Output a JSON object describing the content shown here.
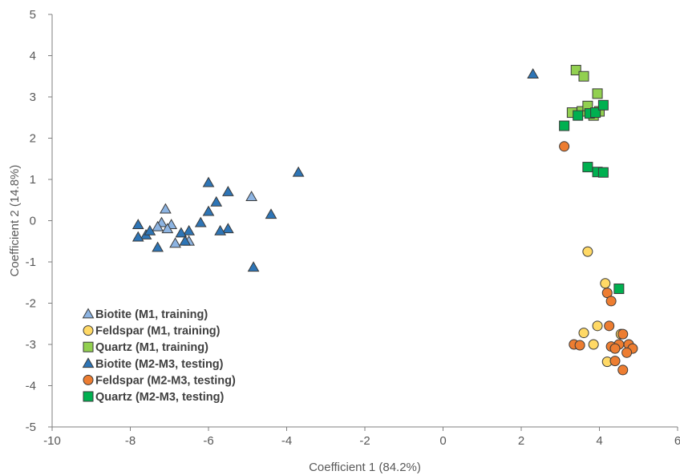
{
  "chart_data": {
    "type": "scatter",
    "title": "",
    "xlabel": "Coefficient 1 (84.2%)",
    "ylabel": "Coefficient 2 (14.8%)",
    "xlim": [
      -10,
      6
    ],
    "ylim": [
      -5,
      5
    ],
    "x_ticks": [
      -10,
      -8,
      -6,
      -4,
      -2,
      0,
      2,
      4,
      6
    ],
    "y_ticks": [
      -5,
      -4,
      -3,
      -2,
      -1,
      0,
      1,
      2,
      3,
      4,
      5
    ],
    "x_tick_labels": [
      "-10",
      "-8",
      "-6",
      "-4",
      "-2",
      "0",
      "2",
      "4",
      "6"
    ],
    "y_tick_labels": [
      "-5",
      "-4",
      "-3",
      "-2",
      "-1",
      "0",
      "1",
      "2",
      "3",
      "4",
      "5"
    ],
    "grid": false,
    "legend_position": "bottom-left",
    "series": [
      {
        "name": "Biotite (M1, training)",
        "marker": "triangle",
        "color": "#8db4e2",
        "points": [
          [
            -7.1,
            0.28
          ],
          [
            -7.2,
            -0.05
          ],
          [
            -6.95,
            -0.1
          ],
          [
            -7.05,
            -0.2
          ],
          [
            -6.85,
            -0.55
          ],
          [
            -6.5,
            -0.5
          ],
          [
            -4.9,
            0.58
          ],
          [
            -7.3,
            -0.15
          ]
        ]
      },
      {
        "name": "Feldspar (M1, training)",
        "marker": "circle",
        "color": "#ffd966",
        "points": [
          [
            3.7,
            -0.75
          ],
          [
            4.15,
            -1.52
          ],
          [
            3.95,
            -2.55
          ],
          [
            3.6,
            -2.72
          ],
          [
            3.85,
            -3.0
          ],
          [
            4.2,
            -3.42
          ],
          [
            4.55,
            -2.75
          ]
        ]
      },
      {
        "name": "Quartz (M1, training)",
        "marker": "square",
        "color": "#92d050",
        "points": [
          [
            3.4,
            3.65
          ],
          [
            3.6,
            3.5
          ],
          [
            3.95,
            3.08
          ],
          [
            3.3,
            2.62
          ],
          [
            3.55,
            2.65
          ],
          [
            3.7,
            2.78
          ],
          [
            3.85,
            2.55
          ],
          [
            4.0,
            2.65
          ]
        ]
      },
      {
        "name": "Biotite (M2-M3, testing)",
        "marker": "triangle",
        "color": "#2e75b6",
        "points": [
          [
            2.3,
            3.55
          ],
          [
            -3.7,
            1.17
          ],
          [
            -6.0,
            0.92
          ],
          [
            -5.5,
            0.7
          ],
          [
            -5.8,
            0.45
          ],
          [
            -6.0,
            0.22
          ],
          [
            -4.4,
            0.15
          ],
          [
            -5.5,
            -0.2
          ],
          [
            -5.7,
            -0.25
          ],
          [
            -6.2,
            -0.05
          ],
          [
            -6.5,
            -0.25
          ],
          [
            -6.7,
            -0.3
          ],
          [
            -6.6,
            -0.5
          ],
          [
            -7.3,
            -0.65
          ],
          [
            -7.6,
            -0.35
          ],
          [
            -7.8,
            -0.1
          ],
          [
            -7.5,
            -0.25
          ],
          [
            -7.8,
            -0.4
          ],
          [
            -4.85,
            -1.13
          ]
        ]
      },
      {
        "name": "Feldspar (M2-M3, testing)",
        "marker": "circle",
        "color": "#ed7d31",
        "points": [
          [
            3.1,
            1.8
          ],
          [
            4.2,
            -1.75
          ],
          [
            4.3,
            -1.95
          ],
          [
            4.25,
            -2.55
          ],
          [
            4.6,
            -2.75
          ],
          [
            4.3,
            -3.05
          ],
          [
            4.5,
            -3.0
          ],
          [
            4.4,
            -3.1
          ],
          [
            4.75,
            -3.0
          ],
          [
            4.85,
            -3.1
          ],
          [
            4.7,
            -3.2
          ],
          [
            3.35,
            -3.0
          ],
          [
            3.5,
            -3.02
          ],
          [
            4.4,
            -3.4
          ],
          [
            4.6,
            -3.62
          ]
        ]
      },
      {
        "name": "Quartz (M2-M3, testing)",
        "marker": "square",
        "color": "#00b050",
        "points": [
          [
            3.1,
            2.3
          ],
          [
            3.45,
            2.55
          ],
          [
            3.75,
            2.6
          ],
          [
            3.9,
            2.62
          ],
          [
            4.1,
            2.8
          ],
          [
            3.7,
            1.3
          ],
          [
            3.95,
            1.18
          ],
          [
            4.1,
            1.17
          ],
          [
            4.5,
            -1.65
          ]
        ]
      }
    ]
  }
}
